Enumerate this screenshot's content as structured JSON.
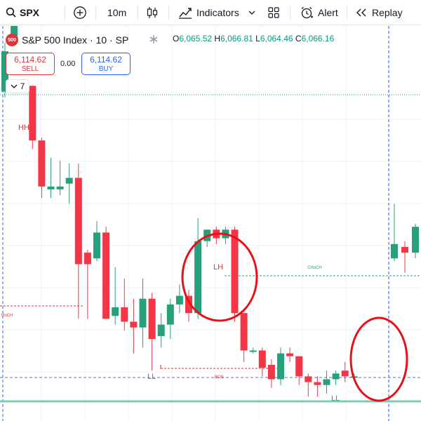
{
  "toolbar": {
    "symbol": "SPX",
    "interval": "10m",
    "indicators_label": "Indicators",
    "alert_label": "Alert",
    "replay_label": "Replay"
  },
  "legend": {
    "logo_text": "500",
    "title": "S&P 500 Index · 10 · SP",
    "open_key": "O",
    "open": "6,065.52",
    "high_key": "H",
    "high": "6,066.81",
    "low_key": "L",
    "low": "6,064.46",
    "close_key": "C",
    "close": "6,066.16"
  },
  "trade": {
    "sell_price": "6,114.62",
    "sell_label": "SELL",
    "buy_price": "6,114.62",
    "buy_label": "BUY",
    "spread": "0.00"
  },
  "indicator_count": "7",
  "annotations": {
    "hh": "HH",
    "lh": "LH",
    "ll_left": "LL",
    "ll_right": "LL",
    "choch_left": "HoCH",
    "choch_right": "CHoCH",
    "bos": "BOS"
  },
  "colors": {
    "up": "#26a17b",
    "down": "#f23645",
    "accent": "#2962ff",
    "annotation_red": "#e0343a",
    "circle": "#e8101a"
  },
  "chart_data": {
    "type": "candlestick",
    "candles": [
      {
        "o": 6105,
        "h": 6122,
        "l": 6103,
        "c": 6119,
        "dir": "up"
      },
      {
        "o": 6123,
        "h": 6130,
        "l": 6121,
        "c": 6131,
        "dir": "up"
      },
      {
        "o": 6133,
        "h": 6134,
        "l": 6130,
        "c": 6133,
        "dir": "up"
      },
      {
        "o": 6107,
        "h": 6106,
        "l": 6085,
        "c": 6088,
        "dir": "down"
      },
      {
        "o": 6088,
        "h": 6089,
        "l": 6068,
        "c": 6072,
        "dir": "down"
      },
      {
        "o": 6072,
        "h": 6082,
        "l": 6068,
        "c": 6071,
        "dir": "up"
      },
      {
        "o": 6071,
        "h": 6081,
        "l": 6069,
        "c": 6072,
        "dir": "up"
      },
      {
        "o": 6073,
        "h": 6080,
        "l": 6066,
        "c": 6075,
        "dir": "up"
      },
      {
        "o": 6075,
        "h": 6080,
        "l": 6026,
        "c": 6045,
        "dir": "down"
      },
      {
        "o": 6045,
        "h": 6050,
        "l": 6026,
        "c": 6049,
        "dir": "down"
      },
      {
        "o": 6047,
        "h": 6060,
        "l": 6046,
        "c": 6056,
        "dir": "up"
      },
      {
        "o": 6056,
        "h": 6058,
        "l": 6026,
        "c": 6026,
        "dir": "down"
      },
      {
        "o": 6027,
        "h": 6044,
        "l": 6024,
        "c": 6030,
        "dir": "up"
      },
      {
        "o": 6030,
        "h": 6040,
        "l": 6022,
        "c": 6025,
        "dir": "down"
      },
      {
        "o": 6025,
        "h": 6033,
        "l": 6014,
        "c": 6023,
        "dir": "down"
      },
      {
        "o": 6023,
        "h": 6040,
        "l": 6016,
        "c": 6033,
        "dir": "up"
      },
      {
        "o": 6033,
        "h": 6035,
        "l": 6008,
        "c": 6019,
        "dir": "down"
      },
      {
        "o": 6020,
        "h": 6028,
        "l": 6016,
        "c": 6024,
        "dir": "up"
      },
      {
        "o": 6024,
        "h": 6033,
        "l": 6019,
        "c": 6031,
        "dir": "up"
      },
      {
        "o": 6031,
        "h": 6038,
        "l": 6028,
        "c": 6034,
        "dir": "up"
      },
      {
        "o": 6034,
        "h": 6036,
        "l": 6025,
        "c": 6028,
        "dir": "down"
      },
      {
        "o": 6028,
        "h": 6061,
        "l": 6026,
        "c": 6053,
        "dir": "up"
      },
      {
        "o": 6053,
        "h": 6057,
        "l": 6051,
        "c": 6057,
        "dir": "up"
      },
      {
        "o": 6057,
        "h": 6058,
        "l": 6052,
        "c": 6054,
        "dir": "down"
      },
      {
        "o": 6054,
        "h": 6058,
        "l": 6052,
        "c": 6057,
        "dir": "up"
      },
      {
        "o": 6057,
        "h": 6058,
        "l": 6025,
        "c": 6028,
        "dir": "down"
      },
      {
        "o": 6028,
        "h": 6028,
        "l": 6011,
        "c": 6015,
        "dir": "down"
      },
      {
        "o": 6015,
        "h": 6016,
        "l": 6014,
        "c": 6015,
        "dir": "up"
      },
      {
        "o": 6015,
        "h": 6016,
        "l": 6006,
        "c": 6009,
        "dir": "down"
      },
      {
        "o": 6010,
        "h": 6012,
        "l": 6002,
        "c": 6005,
        "dir": "down"
      },
      {
        "o": 6005,
        "h": 6016,
        "l": 6003,
        "c": 6014,
        "dir": "up"
      },
      {
        "o": 6014,
        "h": 6016,
        "l": 6011,
        "c": 6013,
        "dir": "down"
      },
      {
        "o": 6013,
        "h": 6013,
        "l": 6003,
        "c": 6006,
        "dir": "down"
      },
      {
        "o": 6006,
        "h": 6007,
        "l": 5999,
        "c": 6004,
        "dir": "down"
      },
      {
        "o": 6004,
        "h": 6006,
        "l": 5999,
        "c": 6003,
        "dir": "down"
      },
      {
        "o": 6003,
        "h": 6008,
        "l": 6000,
        "c": 6005,
        "dir": "up"
      },
      {
        "o": 6005,
        "h": 6008,
        "l": 6003,
        "c": 6007,
        "dir": "up"
      },
      {
        "o": 6008,
        "h": 6011,
        "l": 6004,
        "c": 6006,
        "dir": "down"
      },
      {
        "o": 6006,
        "h": 6007,
        "l": 6005,
        "c": 6006,
        "dir": "up"
      },
      {
        "o": 6047,
        "h": 6066,
        "l": 6046,
        "c": 6052,
        "dir": "up"
      },
      {
        "o": 6051,
        "h": 6053,
        "l": 6042,
        "c": 6049,
        "dir": "down"
      },
      {
        "o": 6049,
        "h": 6059,
        "l": 6047,
        "c": 6058,
        "dir": "up"
      }
    ]
  }
}
